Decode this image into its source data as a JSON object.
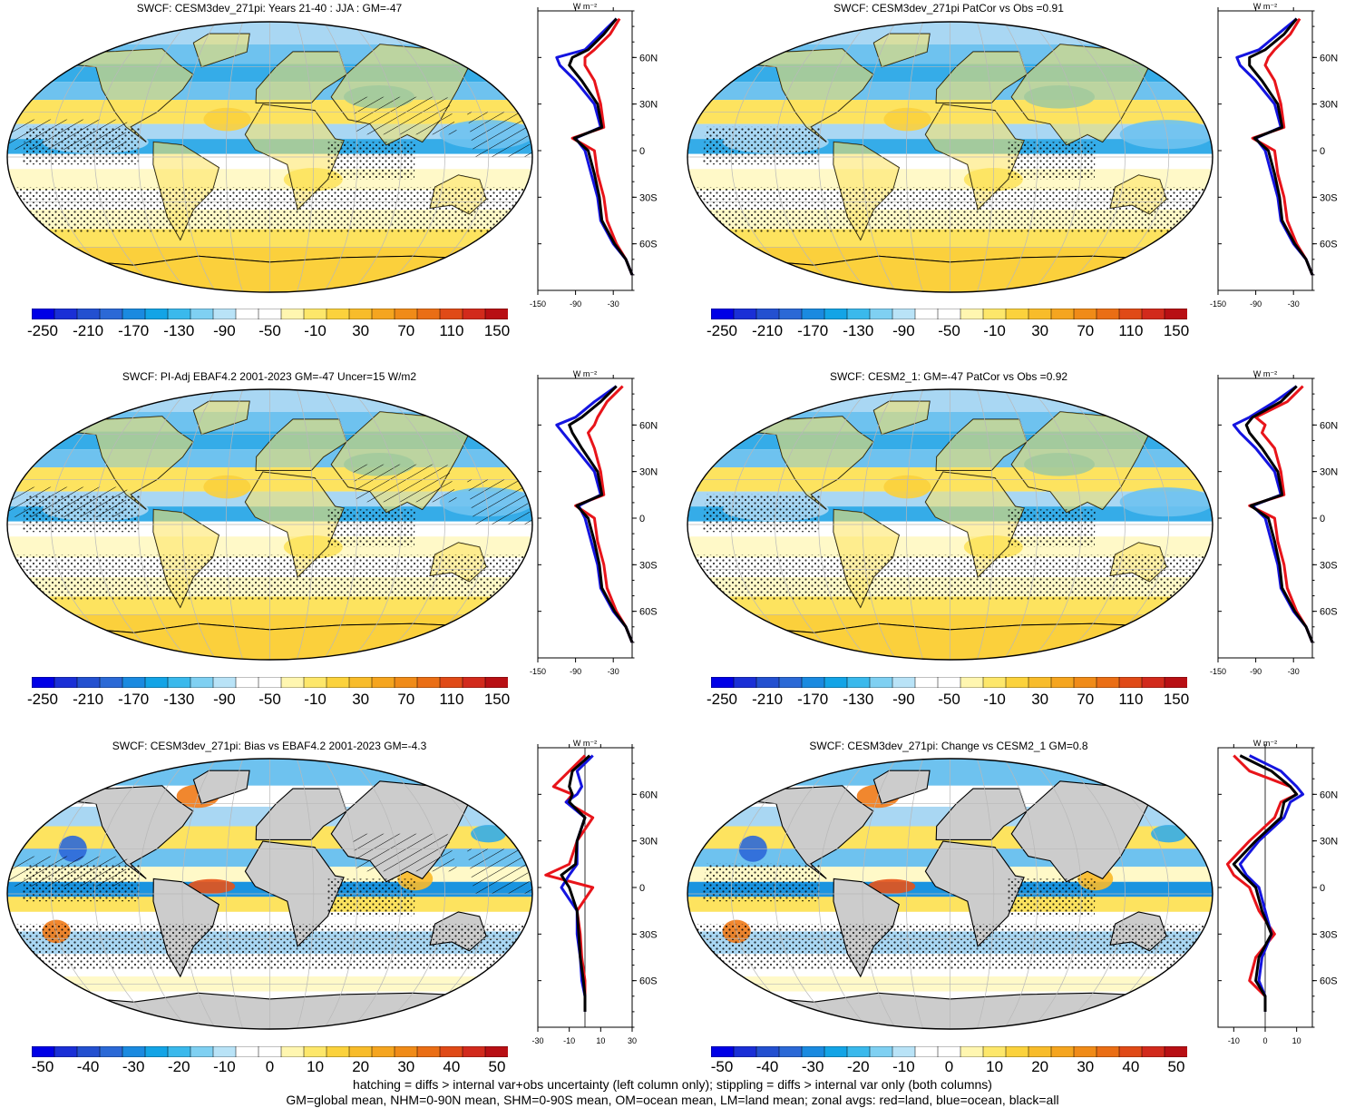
{
  "colors": {
    "land": "#cccccc",
    "ocean_white": "#ffffff",
    "pos": [
      "#fff9c8",
      "#fde35f",
      "#fbd03c",
      "#f9b92a",
      "#f59d1f",
      "#ef7a17",
      "#e6521a",
      "#d42a1f",
      "#b30f14"
    ],
    "neg": [
      "#a9d7f3",
      "#6ec2ef",
      "#35ace8",
      "#1a94e0",
      "#1f7fdc",
      "#2c68d8",
      "#2851d3",
      "#1b36cc",
      "#0f1fc2",
      "#0000b8"
    ],
    "zonal_land": "#e8141a",
    "zonal_ocean": "#1414e0",
    "zonal_all": "#000000"
  },
  "footer": {
    "line1": "hatching = diffs > internal var+obs uncertainty (left column only); stippling = diffs > internal var only (both columns)",
    "line2": "GM=global mean, NHM=0-90N mean, SHM=0-90S mean, OM=ocean mean, LM=land mean; zonal avgs: red=land, blue=ocean, black=all"
  },
  "zonal_unit": "W m⁻²",
  "lat_ticks": [
    "60N",
    "30N",
    "0",
    "30S",
    "60S"
  ],
  "panels": [
    {
      "id": "p1",
      "title": "SWCF: CESM3dev_271pi: Years 21-40 : JJA : GM=-47",
      "cbar": [
        "-250",
        "-210",
        "-170",
        "-130",
        "-90",
        "-50",
        "-10",
        "30",
        "70",
        "110",
        "150"
      ],
      "xticks": [
        "-150",
        "-90",
        "-30"
      ],
      "kind": "abs",
      "hatch": true
    },
    {
      "id": "p2",
      "title": "SWCF: CESM3dev_271pi PatCor vs Obs =0.91",
      "cbar": [
        "-250",
        "-210",
        "-170",
        "-130",
        "-90",
        "-50",
        "-10",
        "30",
        "70",
        "110",
        "150"
      ],
      "xticks": [
        "-150",
        "-90",
        "-30"
      ],
      "kind": "abs",
      "hatch": false
    },
    {
      "id": "p3",
      "title": "SWCF: PI-Adj EBAF4.2 2001-2023 GM=-47 Uncer=15 W/m2",
      "cbar": [
        "-250",
        "-210",
        "-170",
        "-130",
        "-90",
        "-50",
        "-10",
        "30",
        "70",
        "110",
        "150"
      ],
      "xticks": [
        "-150",
        "-90",
        "-30"
      ],
      "kind": "abs",
      "hatch": true
    },
    {
      "id": "p4",
      "title": "SWCF: CESM2_1: GM=-47 PatCor vs Obs =0.92",
      "cbar": [
        "-250",
        "-210",
        "-170",
        "-130",
        "-90",
        "-50",
        "-10",
        "30",
        "70",
        "110",
        "150"
      ],
      "xticks": [
        "-150",
        "-90",
        "-30"
      ],
      "kind": "abs",
      "hatch": false
    },
    {
      "id": "p5",
      "title": "SWCF: CESM3dev_271pi: Bias vs EBAF4.2 2001-2023 GM=-4.3",
      "cbar": [
        "-50",
        "-40",
        "-30",
        "-20",
        "-10",
        "0",
        "10",
        "20",
        "30",
        "40",
        "50"
      ],
      "xticks": [
        "-30",
        "-10",
        "10",
        "30"
      ],
      "kind": "diff",
      "hatch": true
    },
    {
      "id": "p6",
      "title": "SWCF: CESM3dev_271pi: Change vs CESM2_1 GM=0.8",
      "cbar": [
        "-50",
        "-40",
        "-30",
        "-20",
        "-10",
        "0",
        "10",
        "20",
        "30",
        "40",
        "50"
      ],
      "xticks": [
        "-10",
        "0",
        "10"
      ],
      "kind": "diff",
      "hatch": false
    }
  ],
  "chart_data": [
    {
      "type": "heatmap",
      "title": "SWCF: CESM3dev_271pi: Years 21-40 : JJA : GM=-47",
      "colorbar_ticks": [
        -250,
        -210,
        -170,
        -130,
        -90,
        -50,
        -10,
        30,
        70,
        110,
        150
      ],
      "zonal": {
        "type": "line",
        "xlim": [
          -150,
          0
        ],
        "xticks": [
          -150,
          -90,
          -30
        ],
        "lat": [
          85,
          75,
          65,
          60,
          55,
          45,
          30,
          15,
          8,
          0,
          -15,
          -30,
          -45,
          -60,
          -70,
          -80
        ],
        "series": [
          {
            "name": "red=land",
            "values": [
              -20,
              -35,
              -60,
              -75,
              -75,
              -60,
              -50,
              -45,
              -95,
              -60,
              -55,
              -45,
              -40,
              -25,
              -10,
              0
            ]
          },
          {
            "name": "blue=ocean",
            "values": [
              -25,
              -50,
              -75,
              -120,
              -115,
              -90,
              -60,
              -50,
              -90,
              -75,
              -65,
              -55,
              -50,
              -30,
              -10,
              0
            ]
          },
          {
            "name": "black=all",
            "values": [
              -25,
              -45,
              -70,
              -95,
              -100,
              -80,
              -55,
              -48,
              -92,
              -70,
              -60,
              -52,
              -48,
              -28,
              -10,
              0
            ]
          }
        ]
      }
    },
    {
      "type": "heatmap",
      "title": "SWCF: CESM3dev_271pi PatCor vs Obs =0.91",
      "colorbar_ticks": [
        -250,
        -210,
        -170,
        -130,
        -90,
        -50,
        -10,
        30,
        70,
        110,
        150
      ],
      "zonal": {
        "type": "line",
        "xlim": [
          -150,
          0
        ],
        "xticks": [
          -150,
          -90,
          -30
        ],
        "lat": [
          85,
          75,
          65,
          60,
          55,
          45,
          30,
          15,
          8,
          0,
          -15,
          -30,
          -45,
          -60,
          -70,
          -80
        ],
        "series": [
          {
            "name": "red=land",
            "values": [
              -20,
              -35,
              -60,
              -70,
              -75,
              -60,
              -50,
              -45,
              -95,
              -60,
              -55,
              -45,
              -40,
              -25,
              -10,
              0
            ]
          },
          {
            "name": "blue=ocean",
            "values": [
              -25,
              -55,
              -85,
              -120,
              -115,
              -90,
              -60,
              -50,
              -90,
              -75,
              -65,
              -55,
              -50,
              -30,
              -10,
              0
            ]
          },
          {
            "name": "black=all",
            "values": [
              -25,
              -45,
              -75,
              -100,
              -100,
              -80,
              -55,
              -48,
              -92,
              -70,
              -60,
              -52,
              -48,
              -28,
              -10,
              0
            ]
          }
        ]
      }
    },
    {
      "type": "heatmap",
      "title": "SWCF: PI-Adj EBAF4.2 2001-2023 GM=-47 Uncer=15 W/m2",
      "colorbar_ticks": [
        -250,
        -210,
        -170,
        -130,
        -90,
        -50,
        -10,
        30,
        70,
        110,
        150
      ],
      "zonal": {
        "type": "line",
        "xlim": [
          -150,
          0
        ],
        "xticks": [
          -150,
          -90,
          -30
        ],
        "lat": [
          85,
          75,
          65,
          60,
          55,
          45,
          30,
          15,
          8,
          0,
          -15,
          -30,
          -45,
          -60,
          -70,
          -80
        ],
        "series": [
          {
            "name": "red=land",
            "values": [
              -15,
              -40,
              -55,
              -60,
              -70,
              -60,
              -50,
              -45,
              -90,
              -60,
              -55,
              -45,
              -40,
              -25,
              -10,
              0
            ]
          },
          {
            "name": "blue=ocean",
            "values": [
              -25,
              -60,
              -90,
              -120,
              -110,
              -90,
              -60,
              -50,
              -85,
              -75,
              -65,
              -55,
              -50,
              -30,
              -10,
              0
            ]
          },
          {
            "name": "black=all",
            "values": [
              -25,
              -50,
              -80,
              -100,
              -95,
              -80,
              -55,
              -48,
              -88,
              -70,
              -60,
              -52,
              -48,
              -28,
              -10,
              0
            ]
          }
        ]
      }
    },
    {
      "type": "heatmap",
      "title": "SWCF: CESM2_1: GM=-47 PatCor vs Obs =0.92",
      "colorbar_ticks": [
        -250,
        -210,
        -170,
        -130,
        -90,
        -50,
        -10,
        30,
        70,
        110,
        150
      ],
      "zonal": {
        "type": "line",
        "xlim": [
          -150,
          0
        ],
        "xticks": [
          -150,
          -90,
          -30
        ],
        "lat": [
          85,
          75,
          65,
          60,
          55,
          45,
          30,
          15,
          8,
          0,
          -15,
          -30,
          -45,
          -60,
          -70,
          -80
        ],
        "series": [
          {
            "name": "red=land",
            "values": [
              -15,
              -40,
              -90,
              -75,
              -80,
              -60,
              -50,
              -45,
              -100,
              -60,
              -55,
              -45,
              -40,
              -25,
              -10,
              0
            ]
          },
          {
            "name": "blue=ocean",
            "values": [
              -25,
              -60,
              -100,
              -125,
              -115,
              -90,
              -60,
              -50,
              -95,
              -75,
              -65,
              -55,
              -50,
              -30,
              -10,
              0
            ]
          },
          {
            "name": "black=all",
            "values": [
              -25,
              -50,
              -95,
              -105,
              -100,
              -80,
              -55,
              -48,
              -98,
              -70,
              -60,
              -52,
              -48,
              -28,
              -10,
              0
            ]
          }
        ]
      }
    },
    {
      "type": "heatmap",
      "title": "SWCF: CESM3dev_271pi: Bias vs EBAF4.2 2001-2023 GM=-4.3",
      "colorbar_ticks": [
        -50,
        -40,
        -30,
        -20,
        -10,
        0,
        10,
        20,
        30,
        40,
        50
      ],
      "zonal": {
        "type": "line",
        "xlim": [
          -30,
          30
        ],
        "xticks": [
          -30,
          -10,
          10,
          30
        ],
        "lat": [
          85,
          75,
          65,
          60,
          55,
          45,
          30,
          15,
          8,
          0,
          -15,
          -30,
          -45,
          -60,
          -70,
          -80
        ],
        "series": [
          {
            "name": "red=land",
            "values": [
              0,
              -10,
              -20,
              -8,
              -12,
              5,
              -5,
              -10,
              -25,
              5,
              -5,
              -3,
              -2,
              0,
              0,
              0
            ]
          },
          {
            "name": "blue=ocean",
            "values": [
              5,
              -5,
              -2,
              -5,
              -12,
              0,
              -5,
              -5,
              -10,
              -15,
              -5,
              -5,
              -3,
              -2,
              0,
              0
            ]
          },
          {
            "name": "black=all",
            "values": [
              3,
              -8,
              -10,
              -8,
              -10,
              0,
              -5,
              -6,
              -15,
              -10,
              -5,
              -4,
              -3,
              -1,
              0,
              0
            ]
          }
        ]
      }
    },
    {
      "type": "heatmap",
      "title": "SWCF: CESM3dev_271pi: Change vs CESM2_1 GM=0.8",
      "colorbar_ticks": [
        -50,
        -40,
        -30,
        -20,
        -10,
        0,
        10,
        20,
        30,
        40,
        50
      ],
      "zonal": {
        "type": "line",
        "xlim": [
          -15,
          15
        ],
        "xticks": [
          -10,
          0,
          10
        ],
        "lat": [
          85,
          75,
          65,
          60,
          55,
          45,
          30,
          15,
          8,
          0,
          -15,
          -30,
          -45,
          -60,
          -70,
          -80
        ],
        "series": [
          {
            "name": "red=land",
            "values": [
              -10,
              -5,
              8,
              10,
              5,
              3,
              -5,
              -12,
              -10,
              -5,
              -2,
              3,
              -3,
              -5,
              0,
              0
            ]
          },
          {
            "name": "blue=ocean",
            "values": [
              -5,
              5,
              10,
              12,
              8,
              6,
              -2,
              -8,
              -6,
              -2,
              0,
              2,
              -1,
              -2,
              0,
              0
            ]
          },
          {
            "name": "black=all",
            "values": [
              -8,
              2,
              8,
              10,
              6,
              5,
              -3,
              -10,
              -7,
              -3,
              -1,
              2,
              -2,
              -3,
              0,
              0
            ]
          }
        ]
      }
    }
  ]
}
